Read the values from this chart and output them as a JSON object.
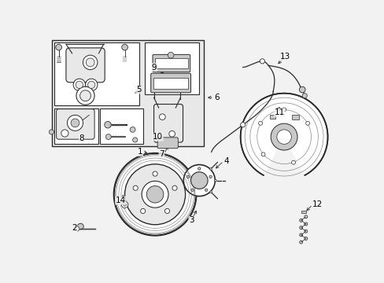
{
  "fig_width": 4.89,
  "fig_height": 3.6,
  "dpi": 100,
  "bg_color": "#f2f2f2",
  "lc": "#2a2a2a",
  "white": "#ffffff",
  "gray_light": "#e8e8e8",
  "gray_mid": "#c8c8c8",
  "gray_dark": "#909090",
  "labels": {
    "1": [
      1.55,
      1.62,
      1.7,
      1.62
    ],
    "2": [
      0.52,
      0.42,
      0.65,
      0.55
    ],
    "3": [
      2.35,
      0.55,
      2.42,
      0.72
    ],
    "4": [
      2.82,
      1.45,
      2.72,
      1.35
    ],
    "5": [
      1.55,
      2.68,
      1.38,
      2.6
    ],
    "6": [
      2.72,
      2.55,
      2.58,
      2.55
    ],
    "7": [
      1.98,
      1.65,
      2.05,
      1.82
    ],
    "8": [
      0.6,
      1.92,
      0.48,
      1.9
    ],
    "9": [
      1.82,
      3.05,
      2.0,
      2.92
    ],
    "10": [
      1.92,
      1.92,
      1.72,
      1.92
    ],
    "11": [
      3.7,
      2.3,
      3.82,
      2.42
    ],
    "12": [
      4.32,
      0.78,
      4.22,
      0.68
    ],
    "13": [
      3.9,
      3.22,
      3.75,
      3.08
    ],
    "14": [
      1.18,
      0.88,
      1.25,
      1.02
    ]
  }
}
